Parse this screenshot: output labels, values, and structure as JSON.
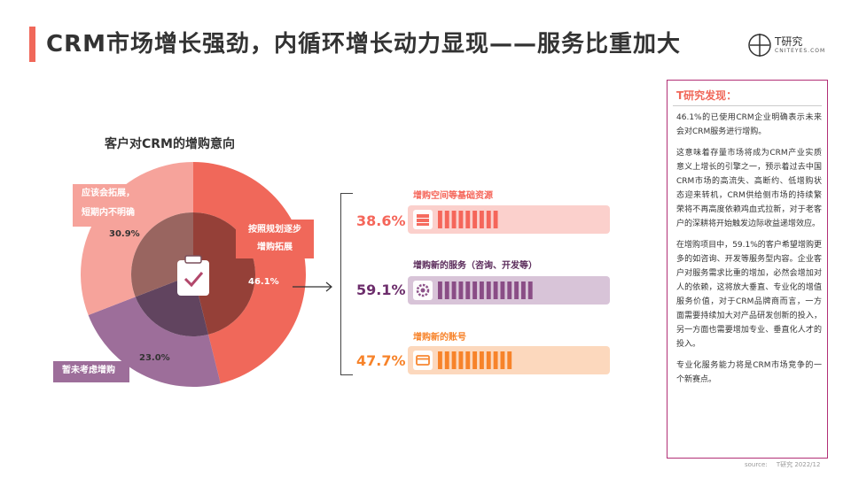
{
  "header": {
    "title": "CRM市场增长强劲，内循环增长动力显现——服务比重加大"
  },
  "logo": {
    "name": "T研究",
    "url": "CNITEYES.COM"
  },
  "colors": {
    "accent": "#f0685a",
    "slice_plan": "#f0685a",
    "slice_unsure": "#f6a39b",
    "slice_none": "#9d6e9a",
    "item1": "#f5665a",
    "item2": "#8a4d86",
    "item3": "#f7832a",
    "panel_border": "#b22f76"
  },
  "chart_data": [
    {
      "type": "pie",
      "title": "客户对CRM的增购意向",
      "slices": [
        {
          "label": "按照规划逐步增购拓展",
          "value": 46.1,
          "display": "46.1%"
        },
        {
          "label": "暂未考虑增购",
          "value": 23.0,
          "display": "23.0%"
        },
        {
          "label": "应该会拓展，短期内不明确",
          "value": 30.9,
          "display": "30.9%"
        }
      ],
      "label_lines": {
        "plan": [
          "按照规划逐步",
          "增购拓展"
        ],
        "unsure": [
          "应该会拓展，",
          "短期内不明确"
        ],
        "none": [
          "暂未考虑增购"
        ]
      }
    },
    {
      "type": "bar",
      "categories": [
        "增购空间等基础资源",
        "增购新的服务（咨询、开发等）",
        "增购新的账号"
      ],
      "values": [
        38.6,
        59.1,
        47.7
      ],
      "display": [
        "38.6%",
        "59.1%",
        "47.7%"
      ],
      "icons": [
        "server-icon",
        "gear-icon",
        "card-icon"
      ]
    }
  ],
  "panel": {
    "heading": "T研究发现：",
    "paragraphs": [
      "46.1%的已使用CRM企业明确表示未来会对CRM服务进行增购。",
      "这意味着存量市场将成为CRM产业实质意义上增长的引擎之一，预示着过去中国CRM市场的高流失、高断约、低增购状态迎来转机，CRM供给侧市场的持续繁荣将不再高度依赖鸡血式拉新，对于老客户的深耕将开始触发边际收益递增效应。",
      "在增购项目中，59.1%的客户希望增购更多的如咨询、开发等服务型内容。企业客户对服务需求比重的增加，必然会增加对人的依赖，这将放大垂直、专业化的增值服务价值，对于CRM品牌商而言，一方面需要持续加大对产品研发创新的投入，另一方面也需要增加专业、垂直化人才的投入。",
      "专业化服务能力将是CRM市场竞争的一个新赛点。"
    ]
  },
  "source": {
    "label": "source:",
    "text": "T研究 2022/12"
  }
}
